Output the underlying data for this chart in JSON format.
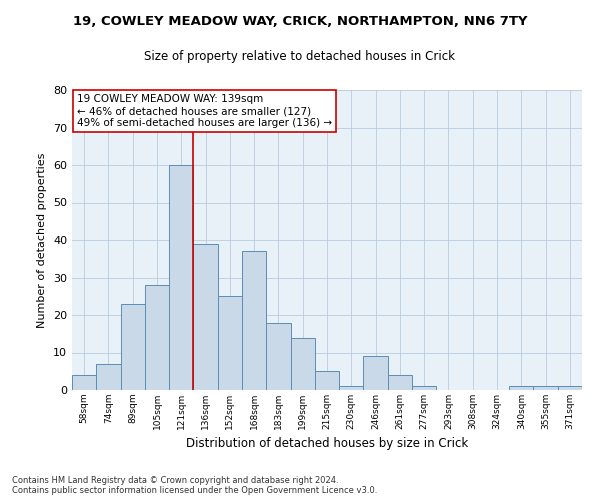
{
  "title1": "19, COWLEY MEADOW WAY, CRICK, NORTHAMPTON, NN6 7TY",
  "title2": "Size of property relative to detached houses in Crick",
  "xlabel": "Distribution of detached houses by size in Crick",
  "ylabel": "Number of detached properties",
  "categories": [
    "58sqm",
    "74sqm",
    "89sqm",
    "105sqm",
    "121sqm",
    "136sqm",
    "152sqm",
    "168sqm",
    "183sqm",
    "199sqm",
    "215sqm",
    "230sqm",
    "246sqm",
    "261sqm",
    "277sqm",
    "293sqm",
    "308sqm",
    "324sqm",
    "340sqm",
    "355sqm",
    "371sqm"
  ],
  "values": [
    4,
    7,
    23,
    28,
    60,
    39,
    25,
    37,
    18,
    14,
    5,
    1,
    9,
    4,
    1,
    0,
    0,
    0,
    1,
    1,
    1
  ],
  "bar_color": "#c9d9e8",
  "bar_edge_color": "#5b8db8",
  "grid_color": "#b8cce0",
  "background_color": "#e8f0f8",
  "vline_color": "#cc0000",
  "annotation_text": "19 COWLEY MEADOW WAY: 139sqm\n← 46% of detached houses are smaller (127)\n49% of semi-detached houses are larger (136) →",
  "annotation_box_color": "white",
  "annotation_box_edge": "#cc0000",
  "ylim": [
    0,
    80
  ],
  "yticks": [
    0,
    10,
    20,
    30,
    40,
    50,
    60,
    70,
    80
  ],
  "footnote": "Contains HM Land Registry data © Crown copyright and database right 2024.\nContains public sector information licensed under the Open Government Licence v3.0."
}
